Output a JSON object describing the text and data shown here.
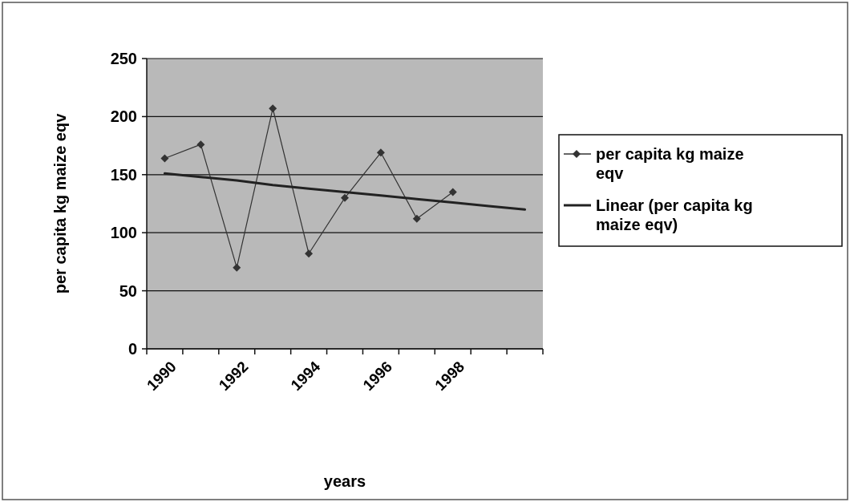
{
  "chart_data": {
    "type": "line",
    "xlabel": "years",
    "ylabel": "per capita kg maize eqv",
    "categories": [
      "1990",
      null,
      "1992",
      null,
      "1994",
      null,
      "1996",
      null,
      "1998",
      null,
      null
    ],
    "series": [
      {
        "name": "per capita kg maize eqv",
        "color": "#333333",
        "marker": "diamond",
        "values": [
          164,
          176,
          70,
          207,
          82,
          130,
          169,
          112,
          135,
          null,
          null
        ]
      },
      {
        "name": "Linear (per capita kg maize eqv)",
        "color": "#222222",
        "marker": "none",
        "values": [
          151,
          148,
          145,
          141,
          138,
          135,
          132,
          129,
          126,
          123,
          120
        ]
      }
    ],
    "ylim": [
      0,
      250
    ],
    "yticks": [
      0,
      50,
      100,
      150,
      200,
      250
    ],
    "grid": "y",
    "legend": "right"
  }
}
